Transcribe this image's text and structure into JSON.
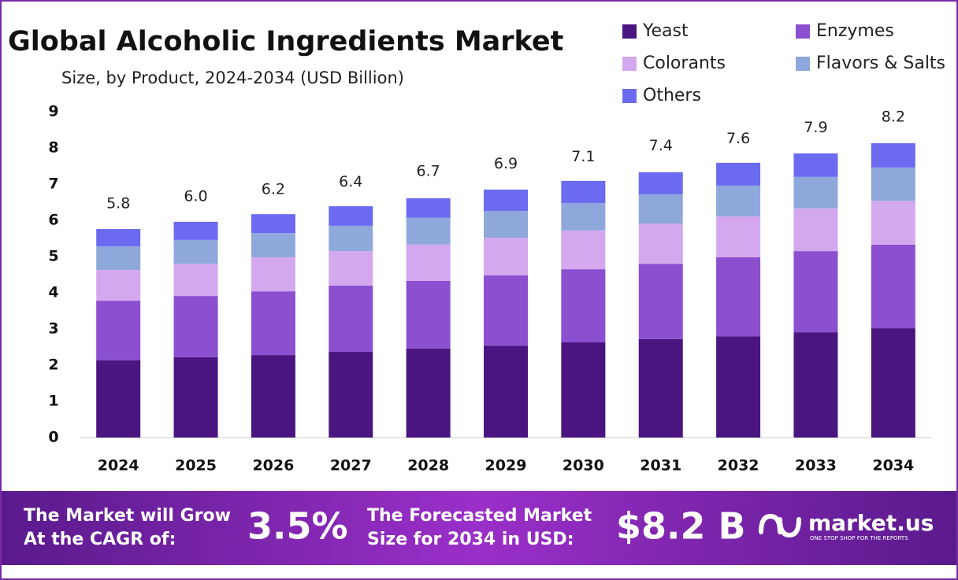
{
  "chart_data": {
    "type": "stacked_bar",
    "title": "Global Alcoholic Ingredients Market",
    "subtitle": "Size, by Product, 2024-2034 (USD Billion)",
    "categories": [
      "2024",
      "2025",
      "2026",
      "2027",
      "2028",
      "2029",
      "2030",
      "2031",
      "2032",
      "2033",
      "2034"
    ],
    "series": [
      {
        "name": "Yeast",
        "color": "#4a1580",
        "values": [
          2.13,
          2.22,
          2.28,
          2.37,
          2.46,
          2.54,
          2.63,
          2.72,
          2.8,
          2.91,
          3.02
        ]
      },
      {
        "name": "Enzymes",
        "color": "#8b4fd0",
        "values": [
          1.65,
          1.69,
          1.76,
          1.83,
          1.87,
          1.94,
          2.02,
          2.08,
          2.18,
          2.24,
          2.31
        ]
      },
      {
        "name": "Colorants",
        "color": "#d4a8ee",
        "values": [
          0.85,
          0.89,
          0.94,
          0.95,
          1.0,
          1.04,
          1.07,
          1.11,
          1.13,
          1.18,
          1.21
        ]
      },
      {
        "name": "Flavors & Salts",
        "color": "#8fa8dc",
        "values": [
          0.65,
          0.66,
          0.67,
          0.7,
          0.74,
          0.74,
          0.76,
          0.81,
          0.85,
          0.87,
          0.92
        ]
      },
      {
        "name": "Others",
        "color": "#6b6af0",
        "values": [
          0.48,
          0.5,
          0.52,
          0.54,
          0.54,
          0.59,
          0.61,
          0.61,
          0.63,
          0.65,
          0.67
        ]
      }
    ],
    "totals": [
      5.8,
      6.0,
      6.2,
      6.4,
      6.7,
      6.9,
      7.1,
      7.4,
      7.6,
      7.9,
      8.2
    ],
    "total_labels": [
      "5.8",
      "6.0",
      "6.2",
      "6.4",
      "6.7",
      "6.9",
      "7.1",
      "7.4",
      "7.6",
      "7.9",
      "8.2"
    ],
    "ylim": [
      0,
      9
    ],
    "yticks": [
      0,
      1,
      2,
      3,
      4,
      5,
      6,
      7,
      8,
      9
    ],
    "grid": false,
    "legend": "top-right"
  },
  "footer": {
    "cagr_text_1": "The Market will Grow",
    "cagr_text_2": "At the CAGR of:",
    "cagr": "3.5%",
    "forecast_text_1": "The Forecasted Market",
    "forecast_text_2": "Size for 2034 in USD:",
    "forecast": "$8.2 B",
    "brand": "market.us",
    "tagline": "ONE STOP SHOP FOR THE REPORTS"
  }
}
